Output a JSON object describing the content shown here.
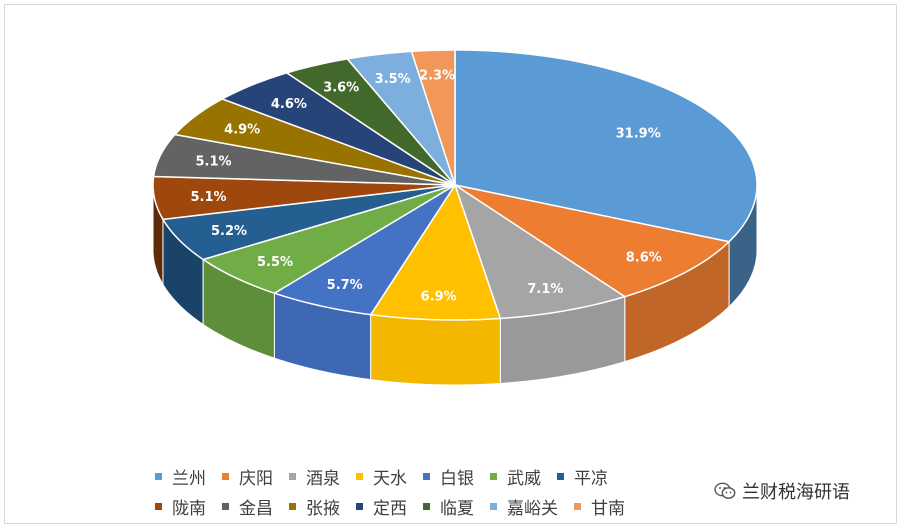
{
  "chart_data": {
    "type": "pie",
    "title": "",
    "categories": [
      "兰州",
      "庆阳",
      "酒泉",
      "天水",
      "白银",
      "武威",
      "平凉",
      "陇南",
      "金昌",
      "张掖",
      "定西",
      "临夏",
      "嘉峪关",
      "甘南"
    ],
    "values": [
      31.9,
      8.6,
      7.1,
      6.9,
      5.7,
      5.5,
      5.2,
      5.1,
      5.1,
      4.9,
      4.6,
      3.6,
      3.5,
      2.3
    ],
    "data_labels": [
      "31.9%",
      "8.6%",
      "7.1%",
      "6.9%",
      "5.7%",
      "5.5%",
      "5.2%",
      "5.1%",
      "5.1%",
      "4.9%",
      "4.6%",
      "3.6%",
      "3.5%",
      "2.3%"
    ],
    "colors": [
      "#5b9bd5",
      "#ed7d31",
      "#a5a5a5",
      "#ffc000",
      "#4472c4",
      "#70ad47",
      "#255e91",
      "#9e480e",
      "#636363",
      "#997300",
      "#264478",
      "#43682b",
      "#7cafdd",
      "#f1975a"
    ],
    "legend_position": "bottom",
    "style": "3d-pie"
  },
  "legend": {
    "rows": [
      [
        "兰州",
        "庆阳",
        "酒泉",
        "天水",
        "白银",
        "武威",
        "平凉"
      ],
      [
        "陇南",
        "金昌",
        "张掖",
        "定西",
        "临夏",
        "嘉峪关",
        "甘南"
      ]
    ]
  },
  "watermark": {
    "text": "兰财税海研语",
    "icon": "wechat-icon"
  }
}
